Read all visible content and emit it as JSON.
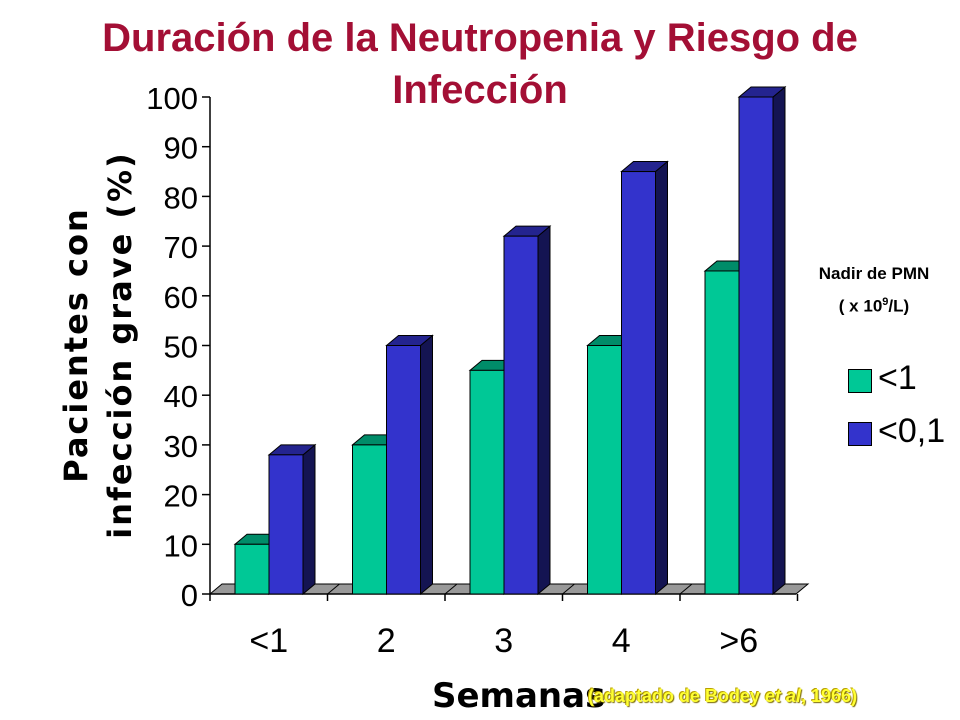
{
  "title": "Duración de la Neutropenia y Riesgo de Infección",
  "legend_title": {
    "line1": "Nadir de PMN",
    "line2_pre": "( x 10",
    "line2_sup": "9",
    "line2_post": "/L)"
  },
  "source": {
    "pre": "(adaptado de Bodey ",
    "italic": "et al",
    "post": ", 1966)"
  },
  "colors": {
    "series1": "#00c896",
    "series2": "#3333cc",
    "floor": "#999999",
    "title": "#a30f35",
    "source": "#ffff33"
  },
  "chart_data": {
    "type": "bar",
    "title": "Duración de la Neutropenia y Riesgo de Infección",
    "xlabel": "Semanas",
    "ylabel": "Pacientes con  infección grave (%)",
    "categories": [
      "<1",
      "2",
      "3",
      "4",
      ">6"
    ],
    "series": [
      {
        "name": "<1",
        "values": [
          10,
          30,
          45,
          50,
          65
        ]
      },
      {
        "name": "<0,1",
        "values": [
          28,
          50,
          72,
          85,
          100
        ]
      }
    ],
    "ylim": [
      0,
      100
    ],
    "yticks": [
      0,
      10,
      20,
      30,
      40,
      50,
      60,
      70,
      80,
      90,
      100
    ],
    "grid": false,
    "legend_position": "right"
  }
}
